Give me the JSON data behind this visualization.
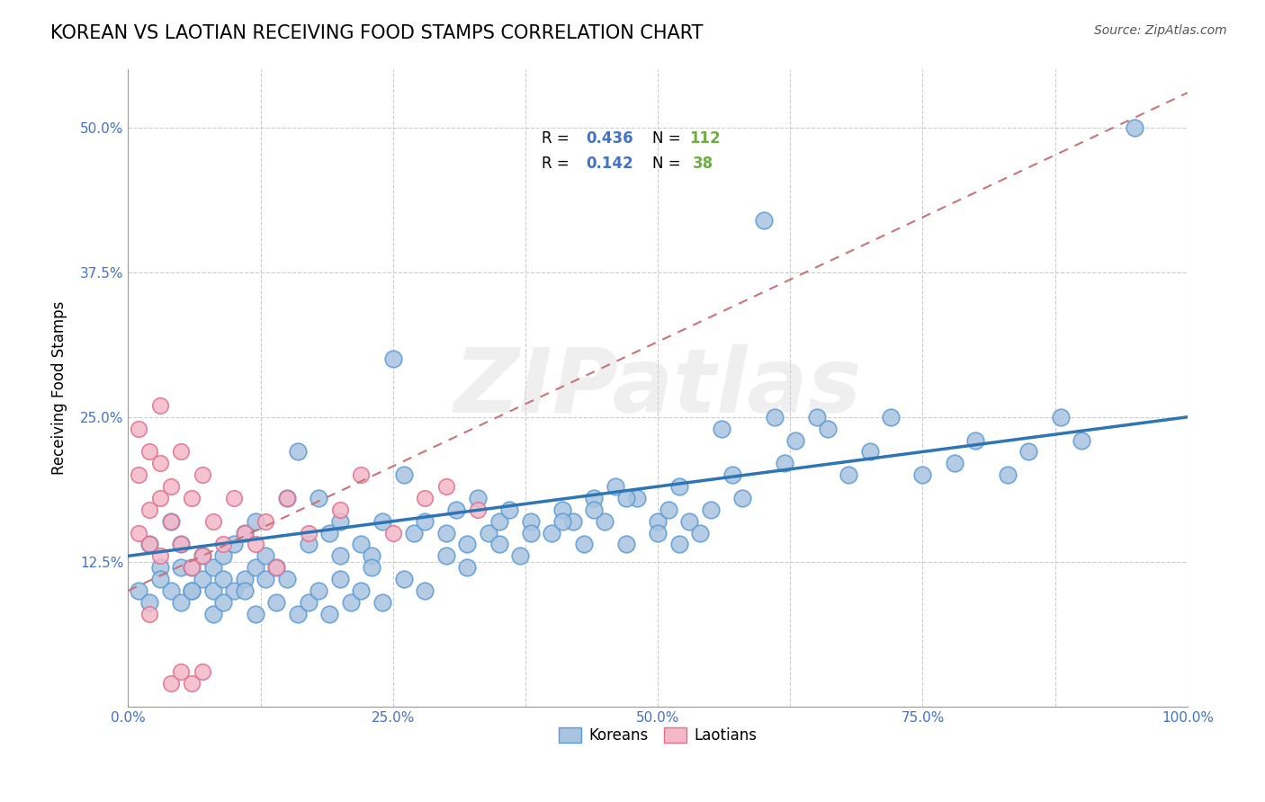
{
  "title": "KOREAN VS LAOTIAN RECEIVING FOOD STAMPS CORRELATION CHART",
  "source": "Source: ZipAtlas.com",
  "ylabel": "Receiving Food Stamps",
  "xlim": [
    0.0,
    1.0
  ],
  "ylim": [
    0.0,
    0.55
  ],
  "xticks": [
    0.0,
    0.125,
    0.25,
    0.375,
    0.5,
    0.625,
    0.75,
    0.875,
    1.0
  ],
  "xticklabels": [
    "0.0%",
    "",
    "25.0%",
    "",
    "50.0%",
    "",
    "75.0%",
    "",
    "100.0%"
  ],
  "yticks": [
    0.0,
    0.125,
    0.25,
    0.375,
    0.5
  ],
  "yticklabels": [
    "",
    "12.5%",
    "25.0%",
    "37.5%",
    "50.0%"
  ],
  "grid_color": "#cccccc",
  "background_color": "#ffffff",
  "korean_color": "#a8c4e0",
  "korean_edge_color": "#5b9bd5",
  "laotian_color": "#f4b8c8",
  "laotian_edge_color": "#e07090",
  "korean_R": 0.436,
  "korean_N": 112,
  "laotian_R": 0.142,
  "laotian_N": 38,
  "legend_R_color": "#4472c4",
  "legend_N_color": "#70ad47",
  "watermark": "ZIPatlas",
  "korean_line_color": "#2e75b6",
  "laotian_line_color": "#c9737a",
  "korean_points_x": [
    0.02,
    0.03,
    0.04,
    0.04,
    0.05,
    0.05,
    0.06,
    0.06,
    0.07,
    0.07,
    0.08,
    0.08,
    0.09,
    0.09,
    0.1,
    0.1,
    0.11,
    0.11,
    0.12,
    0.12,
    0.13,
    0.13,
    0.14,
    0.15,
    0.16,
    0.17,
    0.18,
    0.19,
    0.2,
    0.2,
    0.22,
    0.23,
    0.24,
    0.25,
    0.26,
    0.27,
    0.28,
    0.3,
    0.31,
    0.32,
    0.33,
    0.34,
    0.35,
    0.36,
    0.37,
    0.38,
    0.4,
    0.41,
    0.42,
    0.43,
    0.44,
    0.45,
    0.46,
    0.47,
    0.48,
    0.5,
    0.51,
    0.52,
    0.53,
    0.54,
    0.55,
    0.56,
    0.57,
    0.58,
    0.6,
    0.61,
    0.62,
    0.63,
    0.65,
    0.66,
    0.68,
    0.7,
    0.72,
    0.75,
    0.78,
    0.8,
    0.83,
    0.85,
    0.88,
    0.9,
    0.01,
    0.02,
    0.03,
    0.05,
    0.06,
    0.08,
    0.09,
    0.11,
    0.12,
    0.14,
    0.15,
    0.16,
    0.17,
    0.18,
    0.19,
    0.2,
    0.21,
    0.22,
    0.23,
    0.24,
    0.26,
    0.28,
    0.3,
    0.32,
    0.35,
    0.38,
    0.41,
    0.44,
    0.47,
    0.5,
    0.52,
    0.95
  ],
  "korean_points_y": [
    0.14,
    0.12,
    0.1,
    0.16,
    0.12,
    0.14,
    0.1,
    0.12,
    0.11,
    0.13,
    0.1,
    0.12,
    0.11,
    0.13,
    0.1,
    0.14,
    0.11,
    0.15,
    0.12,
    0.16,
    0.11,
    0.13,
    0.12,
    0.18,
    0.22,
    0.14,
    0.18,
    0.15,
    0.13,
    0.16,
    0.14,
    0.13,
    0.16,
    0.3,
    0.2,
    0.15,
    0.16,
    0.15,
    0.17,
    0.14,
    0.18,
    0.15,
    0.16,
    0.17,
    0.13,
    0.16,
    0.15,
    0.17,
    0.16,
    0.14,
    0.18,
    0.16,
    0.19,
    0.14,
    0.18,
    0.16,
    0.17,
    0.19,
    0.16,
    0.15,
    0.17,
    0.24,
    0.2,
    0.18,
    0.42,
    0.25,
    0.21,
    0.23,
    0.25,
    0.24,
    0.2,
    0.22,
    0.25,
    0.2,
    0.21,
    0.23,
    0.2,
    0.22,
    0.25,
    0.23,
    0.1,
    0.09,
    0.11,
    0.09,
    0.1,
    0.08,
    0.09,
    0.1,
    0.08,
    0.09,
    0.11,
    0.08,
    0.09,
    0.1,
    0.08,
    0.11,
    0.09,
    0.1,
    0.12,
    0.09,
    0.11,
    0.1,
    0.13,
    0.12,
    0.14,
    0.15,
    0.16,
    0.17,
    0.18,
    0.15,
    0.14,
    0.5
  ],
  "laotian_points_x": [
    0.01,
    0.01,
    0.02,
    0.02,
    0.02,
    0.03,
    0.03,
    0.03,
    0.04,
    0.04,
    0.05,
    0.05,
    0.06,
    0.06,
    0.07,
    0.07,
    0.08,
    0.09,
    0.1,
    0.11,
    0.12,
    0.13,
    0.14,
    0.15,
    0.17,
    0.2,
    0.22,
    0.25,
    0.28,
    0.3,
    0.33,
    0.04,
    0.05,
    0.06,
    0.07,
    0.02,
    0.01,
    0.03
  ],
  "laotian_points_y": [
    0.2,
    0.15,
    0.22,
    0.17,
    0.14,
    0.21,
    0.18,
    0.13,
    0.19,
    0.16,
    0.22,
    0.14,
    0.18,
    0.12,
    0.2,
    0.13,
    0.16,
    0.14,
    0.18,
    0.15,
    0.14,
    0.16,
    0.12,
    0.18,
    0.15,
    0.17,
    0.2,
    0.15,
    0.18,
    0.19,
    0.17,
    0.02,
    0.03,
    0.02,
    0.03,
    0.08,
    0.24,
    0.26
  ],
  "korean_line_x": [
    0.0,
    1.0
  ],
  "korean_line_y": [
    0.13,
    0.25
  ],
  "laotian_line_x": [
    0.0,
    1.0
  ],
  "laotian_line_y": [
    0.1,
    0.53
  ]
}
